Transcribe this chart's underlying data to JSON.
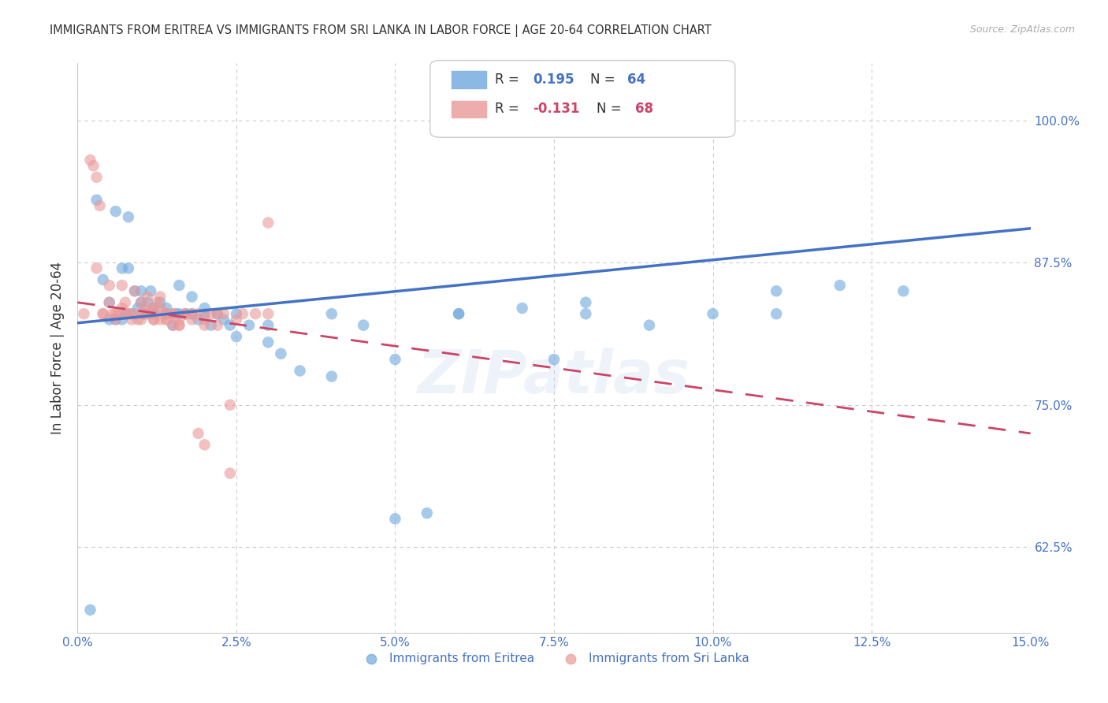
{
  "title": "IMMIGRANTS FROM ERITREA VS IMMIGRANTS FROM SRI LANKA IN LABOR FORCE | AGE 20-64 CORRELATION CHART",
  "source": "Source: ZipAtlas.com",
  "xlabel_ticks": [
    "0.0%",
    "2.5%",
    "5.0%",
    "7.5%",
    "10.0%",
    "12.5%",
    "15.0%"
  ],
  "xlabel_vals": [
    0.0,
    2.5,
    5.0,
    7.5,
    10.0,
    12.5,
    15.0
  ],
  "ylabel": "In Labor Force | Age 20-64",
  "ylabel_ticks": [
    "62.5%",
    "75.0%",
    "87.5%",
    "100.0%"
  ],
  "ylabel_vals": [
    62.5,
    75.0,
    87.5,
    100.0
  ],
  "xlim": [
    0.0,
    15.0
  ],
  "ylim": [
    55.0,
    105.0
  ],
  "color_eritrea": "#6fa8dc",
  "color_srilanka": "#ea9999",
  "color_blue": "#4472c4",
  "color_pink": "#cc4466",
  "eritrea_x": [
    0.2,
    0.3,
    0.5,
    0.6,
    0.7,
    0.75,
    0.8,
    0.85,
    0.9,
    0.95,
    1.0,
    1.05,
    1.1,
    1.15,
    1.2,
    1.3,
    1.4,
    1.5,
    1.55,
    1.6,
    1.7,
    1.8,
    1.9,
    2.0,
    2.1,
    2.2,
    2.3,
    2.4,
    2.5,
    2.7,
    3.0,
    3.2,
    3.5,
    4.0,
    4.5,
    5.0,
    5.5,
    6.0,
    7.0,
    7.5,
    8.0,
    9.0,
    10.0,
    11.0,
    12.0,
    0.4,
    0.6,
    0.7,
    0.8,
    1.0,
    1.2,
    1.4,
    1.6,
    1.8,
    2.0,
    2.5,
    3.0,
    4.0,
    5.0,
    6.0,
    8.0,
    11.0,
    13.0,
    0.5
  ],
  "eritrea_y": [
    57.0,
    93.0,
    82.5,
    82.5,
    82.5,
    83.0,
    87.0,
    83.0,
    85.0,
    83.5,
    85.0,
    83.0,
    84.0,
    85.0,
    83.5,
    84.0,
    83.5,
    82.0,
    83.0,
    85.5,
    83.0,
    84.5,
    82.5,
    83.0,
    82.0,
    83.0,
    82.5,
    82.0,
    81.0,
    82.0,
    80.5,
    79.5,
    78.0,
    77.5,
    82.0,
    79.0,
    65.5,
    83.0,
    83.5,
    79.0,
    83.0,
    82.0,
    83.0,
    85.0,
    85.5,
    86.0,
    92.0,
    87.0,
    91.5,
    84.0,
    83.0,
    83.0,
    83.0,
    83.0,
    83.5,
    83.0,
    82.0,
    83.0,
    65.0,
    83.0,
    84.0,
    83.0,
    85.0,
    84.0
  ],
  "srilanka_x": [
    0.1,
    0.2,
    0.25,
    0.3,
    0.35,
    0.4,
    0.5,
    0.55,
    0.6,
    0.65,
    0.7,
    0.75,
    0.8,
    0.85,
    0.9,
    0.95,
    1.0,
    1.05,
    1.1,
    1.15,
    1.2,
    1.25,
    1.3,
    1.35,
    1.4,
    1.5,
    1.6,
    1.7,
    1.8,
    1.9,
    2.0,
    2.1,
    2.2,
    2.3,
    2.5,
    2.8,
    3.0,
    0.3,
    0.5,
    0.7,
    0.9,
    1.0,
    1.1,
    1.2,
    1.3,
    1.4,
    1.5,
    1.6,
    1.7,
    1.9,
    2.0,
    2.2,
    2.4,
    2.6,
    0.6,
    0.8,
    1.0,
    1.1,
    1.2,
    1.3,
    1.4,
    1.5,
    1.6,
    1.8,
    2.0,
    2.4,
    3.0,
    0.4
  ],
  "srilanka_y": [
    83.0,
    96.5,
    96.0,
    95.0,
    92.5,
    83.0,
    84.0,
    83.0,
    82.5,
    83.0,
    83.5,
    84.0,
    83.0,
    82.5,
    83.0,
    82.5,
    83.0,
    83.0,
    83.5,
    83.0,
    82.5,
    84.0,
    84.5,
    83.0,
    82.5,
    83.0,
    82.0,
    83.0,
    82.5,
    83.0,
    82.0,
    83.0,
    82.0,
    83.0,
    82.5,
    83.0,
    91.0,
    87.0,
    85.5,
    85.5,
    85.0,
    84.0,
    84.5,
    83.5,
    83.5,
    82.5,
    83.0,
    82.0,
    83.0,
    72.5,
    71.5,
    83.0,
    69.0,
    83.0,
    83.0,
    83.0,
    82.5,
    83.0,
    82.5,
    82.5,
    83.0,
    82.0,
    82.5,
    83.0,
    82.5,
    75.0,
    83.0,
    83.0
  ],
  "eritrea_trend_x0": 0.0,
  "eritrea_trend_x1": 15.0,
  "eritrea_trend_y0": 82.2,
  "eritrea_trend_y1": 90.5,
  "srilanka_trend_x0": 0.0,
  "srilanka_trend_x1": 15.0,
  "srilanka_trend_y0": 84.0,
  "srilanka_trend_y1": 72.5,
  "background_color": "#ffffff",
  "grid_color": "#cccccc"
}
